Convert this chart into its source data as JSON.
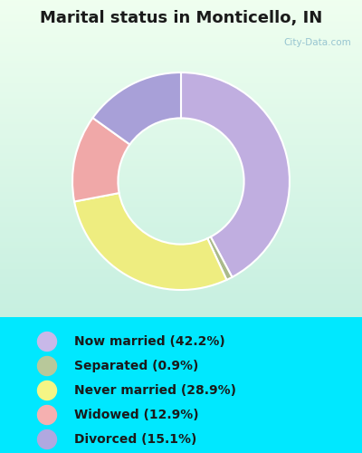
{
  "title": "Marital status in Monticello, IN",
  "slices": [
    42.2,
    0.9,
    28.9,
    12.9,
    15.1
  ],
  "labels": [
    "Now married (42.2%)",
    "Separated (0.9%)",
    "Never married (28.9%)",
    "Widowed (12.9%)",
    "Divorced (15.1%)"
  ],
  "colors": [
    "#c0aee0",
    "#aaba8a",
    "#eeed80",
    "#f0a8a8",
    "#a8a0d8"
  ],
  "legend_colors": [
    "#c8b8e8",
    "#b8c89a",
    "#f5f585",
    "#f5b0b0",
    "#b0a8e0"
  ],
  "legend_bg": "#00e8ff",
  "title_color": "#1a1a1a",
  "title_fontsize": 13,
  "start_angle": 90,
  "donut_width": 0.42
}
